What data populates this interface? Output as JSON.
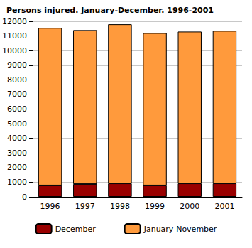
{
  "chart_data": {
    "type": "bar",
    "title": "Persons injured. January-December. 1996-2001",
    "categories": [
      "1996",
      "1997",
      "1998",
      "1999",
      "2000",
      "2001"
    ],
    "series": [
      {
        "name": "December",
        "color": "#990000",
        "values": [
          780,
          870,
          920,
          780,
          920,
          920
        ]
      },
      {
        "name": "January-November",
        "color": "#ff9a3c",
        "values": [
          10770,
          10530,
          10880,
          10420,
          10380,
          10430
        ]
      }
    ],
    "stacked": true,
    "ylim": [
      0,
      12000
    ],
    "yticks": [
      0,
      1000,
      2000,
      3000,
      4000,
      5000,
      6000,
      7000,
      8000,
      9000,
      10000,
      11000,
      12000
    ],
    "grid": true,
    "legend": "bottom"
  }
}
